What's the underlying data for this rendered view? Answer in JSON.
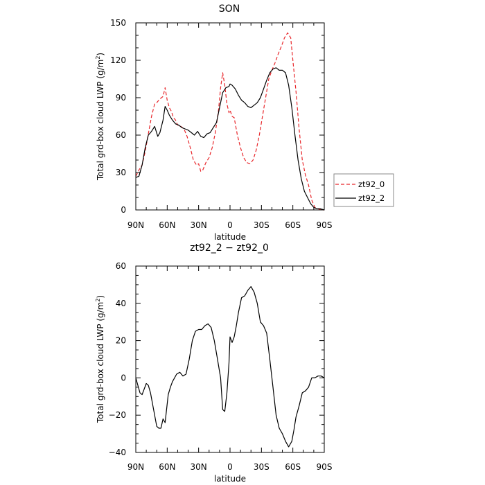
{
  "chart_data": [
    {
      "type": "line",
      "title": "SON",
      "xlabel": "latitude",
      "ylabel": "Total grd-box cloud LWP (g/m",
      "ylabel_sup": "2",
      "ylabel_end": ")",
      "xlim": [
        90,
        -90
      ],
      "ylim": [
        0,
        150
      ],
      "xticks": [
        90,
        60,
        30,
        0,
        -30,
        -60,
        -90
      ],
      "xtick_labels": [
        "90N",
        "60N",
        "30N",
        "0",
        "30S",
        "60S",
        "90S"
      ],
      "yticks": [
        0,
        30,
        60,
        90,
        120,
        150
      ],
      "ytick_labels": [
        "0",
        "30",
        "60",
        "90",
        "120",
        "150"
      ],
      "legend_position": "right",
      "series": [
        {
          "name": "zt92_0",
          "color": "#e8262a",
          "dash": "dashed",
          "x": [
            90,
            87,
            84,
            81,
            78,
            75,
            72,
            70,
            67,
            64,
            62,
            60,
            58,
            56,
            54,
            52,
            50,
            47,
            44,
            41,
            38,
            35,
            32,
            30,
            28,
            26,
            23,
            20,
            17,
            14,
            11,
            9,
            7,
            5,
            3,
            1,
            0,
            -2,
            -4,
            -7,
            -10,
            -13,
            -16,
            -19,
            -22,
            -25,
            -28,
            -31,
            -34,
            -37,
            -40,
            -43,
            -46,
            -49,
            -52,
            -55,
            -58,
            -60,
            -63,
            -66,
            -69,
            -72,
            -75,
            -78,
            -81,
            -84,
            -87,
            -90
          ],
          "y": [
            27,
            32,
            36,
            47,
            61,
            75,
            85,
            86,
            89,
            91,
            98,
            88,
            82,
            79,
            74,
            72,
            68,
            67,
            65,
            59,
            50,
            40,
            36,
            37,
            31,
            32,
            38,
            42,
            50,
            62,
            80,
            98,
            110,
            100,
            85,
            78,
            80,
            75,
            74,
            60,
            50,
            42,
            38,
            37,
            40,
            48,
            60,
            75,
            90,
            105,
            112,
            118,
            125,
            131,
            138,
            142,
            138,
            120,
            95,
            65,
            40,
            28,
            20,
            8,
            2,
            1,
            0,
            0
          ]
        },
        {
          "name": "zt92_2",
          "color": "#000000",
          "dash": "solid",
          "x": [
            90,
            87,
            84,
            81,
            78,
            75,
            72,
            69,
            67,
            64,
            62,
            60,
            58,
            55,
            52,
            49,
            46,
            43,
            40,
            37,
            34,
            31,
            28,
            25,
            22,
            19,
            16,
            13,
            10,
            7,
            4,
            1,
            0,
            -2,
            -5,
            -8,
            -11,
            -14,
            -17,
            -20,
            -23,
            -26,
            -29,
            -32,
            -35,
            -38,
            -41,
            -44,
            -47,
            -50,
            -53,
            -56,
            -59,
            -62,
            -65,
            -68,
            -71,
            -74,
            -77,
            -80,
            -83,
            -86,
            -90
          ],
          "y": [
            26,
            27,
            36,
            50,
            60,
            63,
            67,
            59,
            62,
            72,
            83,
            80,
            76,
            72,
            69,
            68,
            66,
            65,
            64,
            62,
            60,
            63,
            59,
            58,
            61,
            62,
            66,
            70,
            82,
            94,
            98,
            99,
            101,
            100,
            97,
            92,
            88,
            86,
            83,
            82,
            84,
            86,
            90,
            97,
            104,
            110,
            113,
            114,
            112,
            112,
            110,
            100,
            82,
            60,
            40,
            25,
            15,
            10,
            5,
            2,
            1,
            1,
            0
          ]
        }
      ]
    },
    {
      "type": "line",
      "title": "zt92_2 − zt92_0",
      "xlabel": "latitude",
      "ylabel": "Total grd-box cloud LWP (g/m",
      "ylabel_sup": "2",
      "ylabel_end": ")",
      "xlim": [
        90,
        -90
      ],
      "ylim": [
        -40,
        60
      ],
      "xticks": [
        90,
        60,
        30,
        0,
        -30,
        -60,
        -90
      ],
      "xtick_labels": [
        "90N",
        "60N",
        "30N",
        "0",
        "30S",
        "60S",
        "90S"
      ],
      "yticks": [
        -40,
        -20,
        0,
        20,
        40,
        60
      ],
      "ytick_labels": [
        "−40",
        "−20",
        "0",
        "20",
        "40",
        "60"
      ],
      "series": [
        {
          "name": "",
          "color": "#000000",
          "dash": "solid",
          "x": [
            90,
            88,
            86,
            84,
            82,
            80,
            78,
            76,
            74,
            72,
            70,
            68,
            66,
            64,
            62,
            61,
            59,
            57,
            55,
            53,
            51,
            48,
            45,
            42,
            39,
            36,
            33,
            30,
            27,
            24,
            21,
            18,
            15,
            12,
            9,
            7,
            5,
            3,
            1,
            0,
            -2,
            -4,
            -6,
            -8,
            -11,
            -14,
            -17,
            -20,
            -23,
            -26,
            -29,
            -32,
            -35,
            -38,
            -41,
            -44,
            -47,
            -50,
            -53,
            -56,
            -59,
            -61,
            -63,
            -66,
            -69,
            -72,
            -75,
            -78,
            -81,
            -84,
            -87,
            -90
          ],
          "y": [
            0,
            -4,
            -8,
            -9,
            -6,
            -3,
            -4,
            -8,
            -14,
            -20,
            -26,
            -27,
            -27,
            -22,
            -24,
            -19,
            -9,
            -5,
            -2,
            0,
            2,
            3,
            1,
            2,
            10,
            20,
            25,
            26,
            26,
            28,
            29,
            27,
            20,
            10,
            0,
            -17,
            -18,
            -8,
            8,
            22,
            19,
            22,
            28,
            35,
            43,
            44,
            47,
            49,
            46,
            40,
            30,
            28,
            24,
            10,
            -5,
            -20,
            -27,
            -30,
            -34,
            -37,
            -34,
            -28,
            -21,
            -15,
            -8,
            -7,
            -5,
            0,
            0,
            1,
            1,
            0
          ]
        }
      ]
    }
  ]
}
